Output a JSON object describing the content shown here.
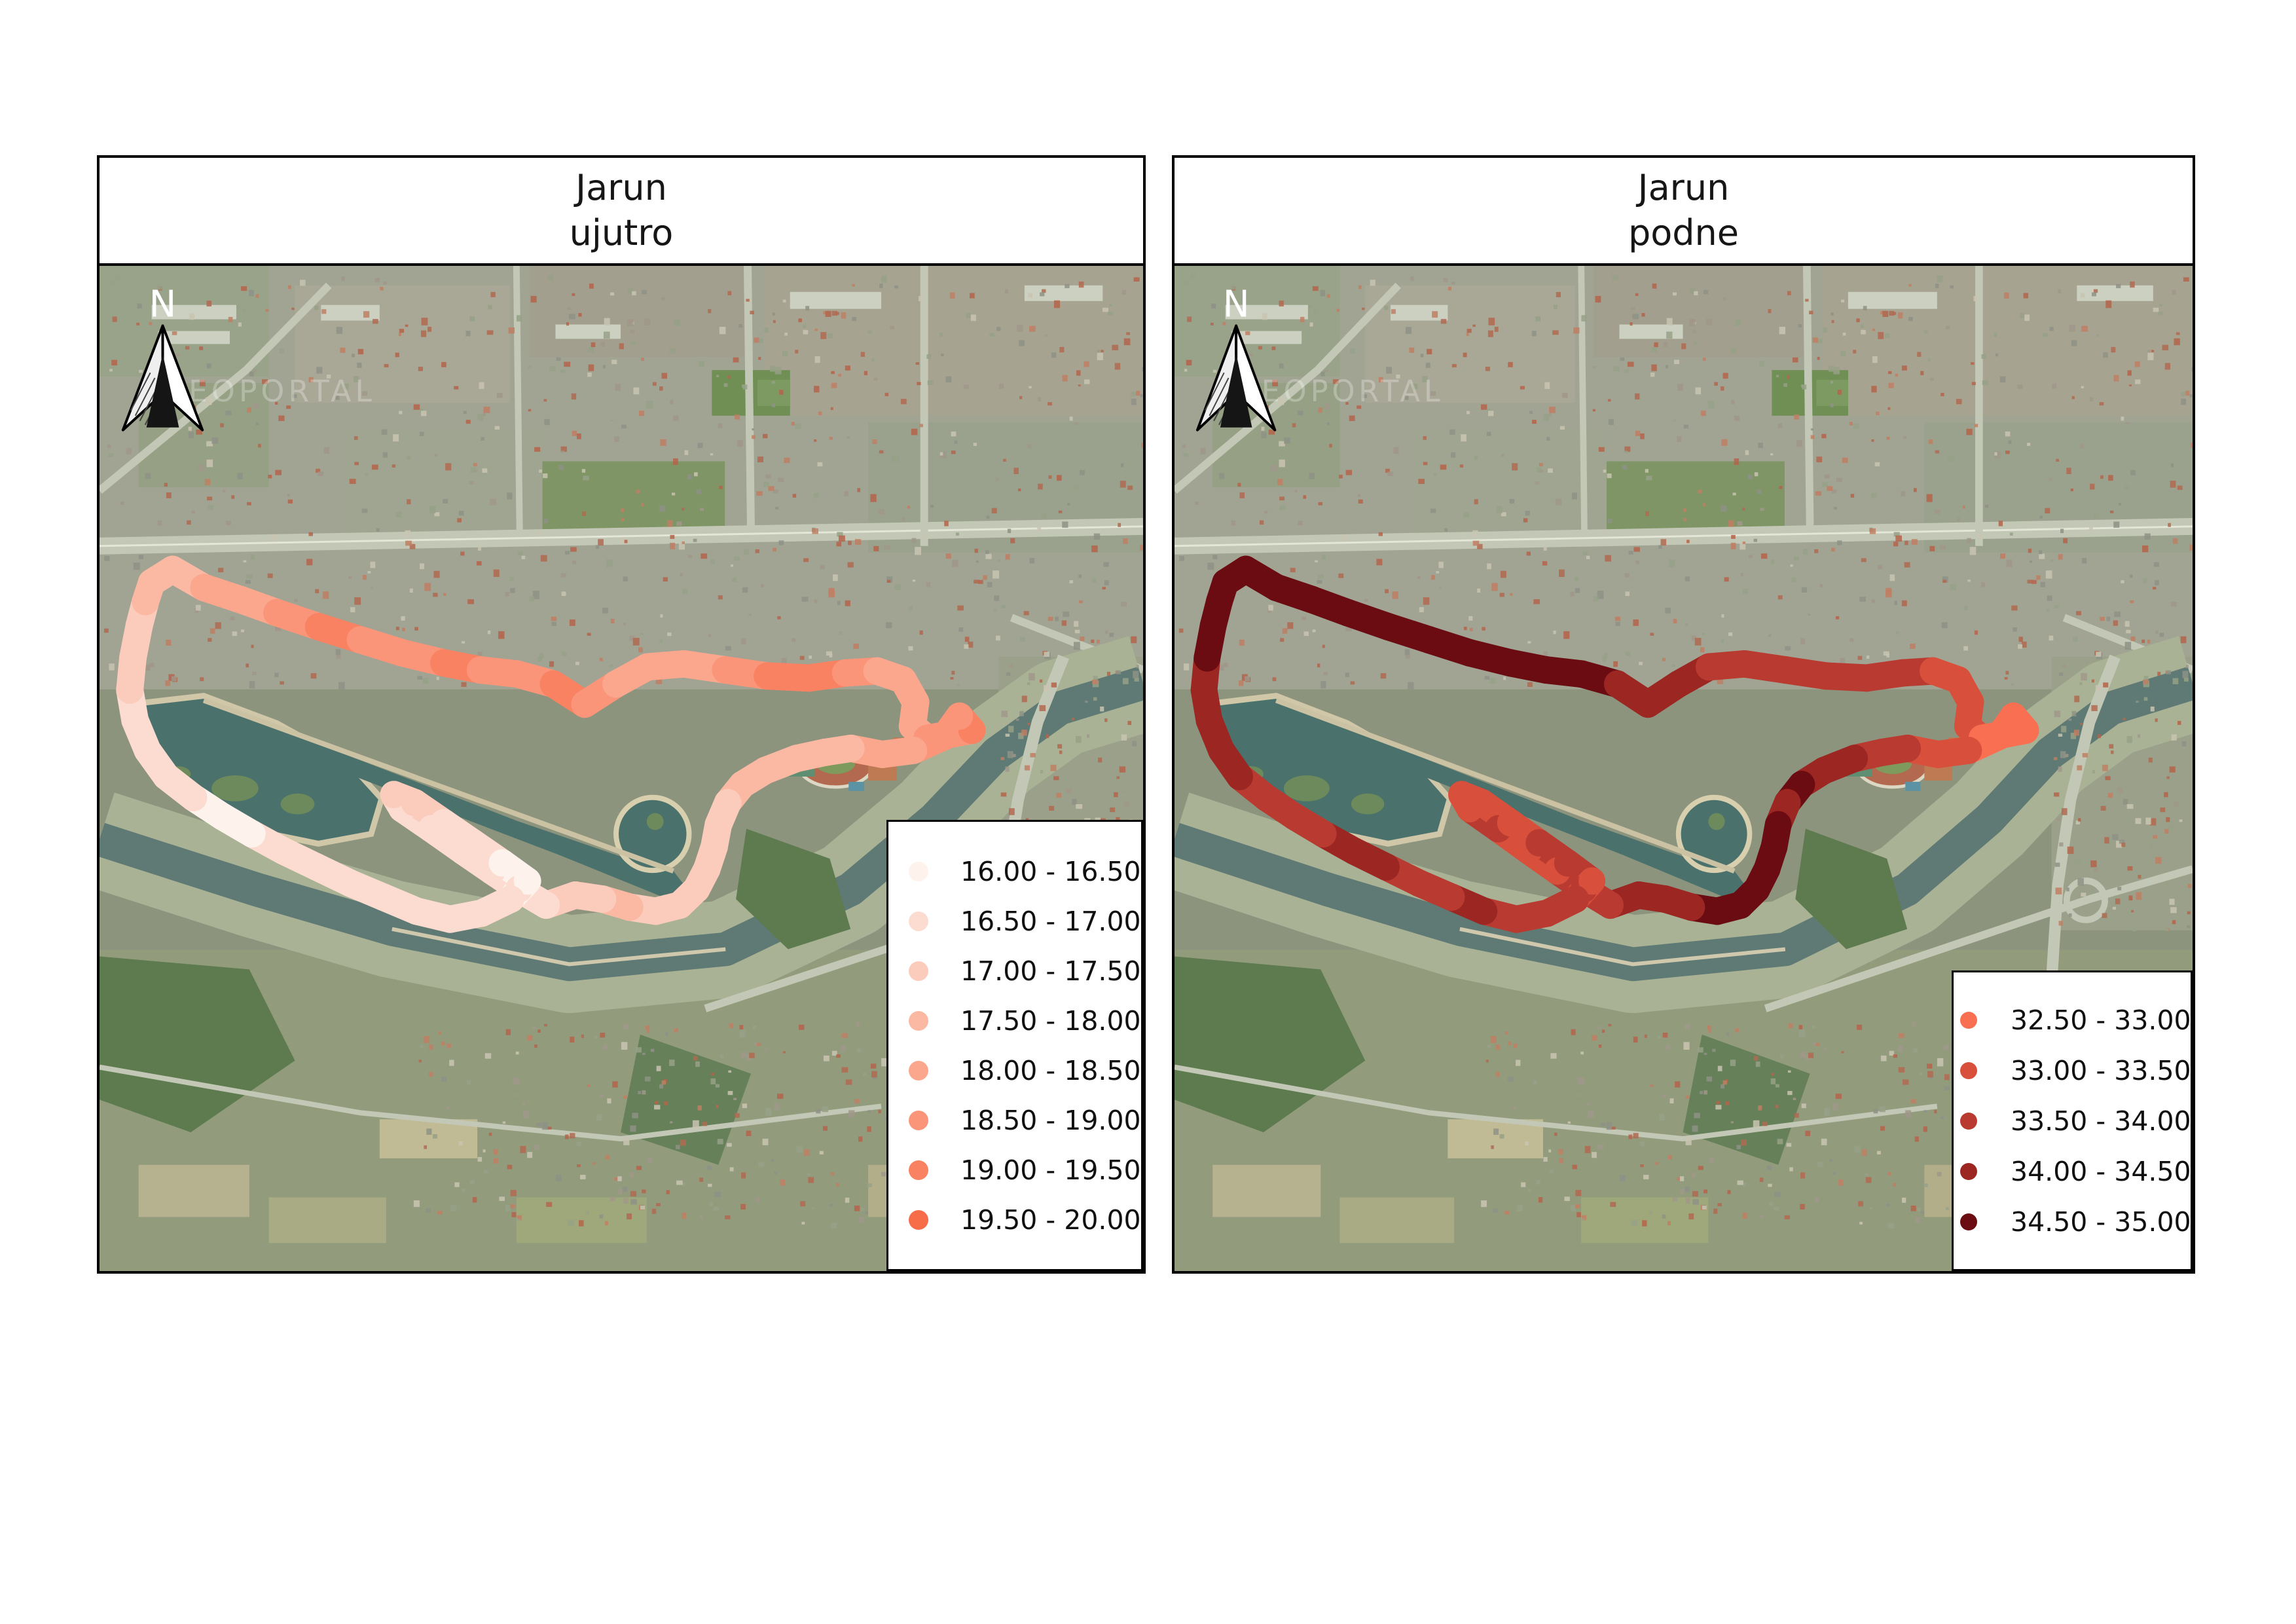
{
  "figure": {
    "background": "#ffffff"
  },
  "watermark": "GEOPORTAL",
  "north_arrow": {
    "label": "N"
  },
  "basemap_colors": {
    "terrain": "#8d947e",
    "urban": "#a1a492",
    "forest": "#5e7b50",
    "field": "#b6b28f",
    "lake_water": "#4a716b",
    "river_water": "#5f7a74",
    "river_bank": "#a9b295",
    "road": "#c3c8b6",
    "roof": "#b06a50",
    "sand": "#d8cfae"
  },
  "route": [
    [
      5.0,
      31.5
    ],
    [
      7.0,
      30.2
    ],
    [
      10.0,
      32.0
    ],
    [
      13.5,
      33.2
    ],
    [
      17.0,
      34.5
    ],
    [
      21.0,
      35.9
    ],
    [
      25.0,
      37.2
    ],
    [
      29.0,
      38.5
    ],
    [
      33.0,
      39.5
    ],
    [
      36.5,
      40.2
    ],
    [
      40.0,
      40.6
    ],
    [
      43.5,
      41.6
    ],
    [
      46.5,
      43.6
    ],
    [
      49.5,
      41.6
    ],
    [
      52.5,
      39.9
    ],
    [
      56.0,
      39.6
    ],
    [
      60.0,
      40.2
    ],
    [
      64.0,
      40.8
    ],
    [
      68.0,
      41.0
    ],
    [
      71.5,
      40.5
    ],
    [
      74.5,
      40.3
    ],
    [
      77.0,
      41.2
    ],
    [
      78.2,
      43.4
    ],
    [
      77.9,
      45.8
    ],
    [
      79.3,
      47.0
    ],
    [
      81.5,
      46.6
    ],
    [
      83.6,
      46.2
    ],
    [
      82.4,
      44.8
    ],
    [
      81.0,
      46.8
    ],
    [
      78.0,
      48.2
    ],
    [
      75.0,
      48.6
    ],
    [
      72.0,
      48.0
    ],
    [
      69.5,
      48.4
    ],
    [
      66.8,
      49.0
    ],
    [
      63.8,
      50.2
    ],
    [
      61.6,
      51.6
    ],
    [
      60.2,
      53.4
    ],
    [
      59.3,
      55.6
    ],
    [
      58.9,
      57.8
    ],
    [
      58.2,
      60.0
    ],
    [
      57.2,
      62.0
    ],
    [
      55.6,
      63.6
    ],
    [
      53.3,
      64.2
    ],
    [
      50.8,
      63.8
    ],
    [
      48.2,
      63.0
    ],
    [
      45.6,
      62.6
    ],
    [
      42.8,
      63.6
    ],
    [
      40.2,
      62.0
    ],
    [
      37.6,
      60.2
    ],
    [
      34.8,
      58.2
    ],
    [
      31.8,
      56.0
    ],
    [
      29.0,
      54.0
    ],
    [
      28.2,
      52.6
    ],
    [
      30.2,
      53.4
    ],
    [
      33.0,
      55.4
    ],
    [
      35.8,
      57.4
    ],
    [
      38.6,
      59.4
    ],
    [
      41.0,
      61.2
    ],
    [
      39.4,
      63.0
    ],
    [
      36.6,
      64.4
    ],
    [
      33.6,
      65.0
    ],
    [
      30.4,
      64.2
    ],
    [
      27.2,
      62.8
    ],
    [
      24.0,
      61.4
    ],
    [
      20.8,
      59.8
    ],
    [
      17.6,
      58.2
    ],
    [
      14.6,
      56.5
    ],
    [
      11.8,
      54.8
    ],
    [
      9.0,
      52.9
    ],
    [
      6.4,
      50.8
    ],
    [
      4.6,
      48.2
    ],
    [
      3.4,
      45.2
    ],
    [
      2.9,
      42.2
    ],
    [
      3.2,
      39.0
    ],
    [
      3.8,
      35.8
    ],
    [
      4.4,
      33.4
    ]
  ],
  "panels": [
    {
      "title_line1": "Jarun",
      "title_line2": "ujutro",
      "legend": {
        "entries": [
          {
            "label": "16.00 - 16.50",
            "color": "#fdf2ec",
            "textured": true
          },
          {
            "label": "16.50 - 17.00",
            "color": "#fcdcd1"
          },
          {
            "label": "17.00 - 17.50",
            "color": "#fbccbc"
          },
          {
            "label": "17.50 - 18.00",
            "color": "#fbb9a3"
          },
          {
            "label": "18.00 - 18.50",
            "color": "#fba78e"
          },
          {
            "label": "18.50 - 19.00",
            "color": "#fa957a"
          },
          {
            "label": "19.00 - 19.50",
            "color": "#f98263"
          },
          {
            "label": "19.50 - 20.00",
            "color": "#f76d4a"
          }
        ]
      },
      "track": {
        "classes": [
          3,
          3,
          4,
          4,
          5,
          6,
          5,
          5,
          6,
          5,
          5,
          6,
          5,
          4,
          4,
          4,
          5,
          6,
          6,
          5,
          4,
          4,
          4,
          4,
          5,
          5,
          6,
          5,
          5,
          4,
          4,
          3,
          3,
          3,
          3,
          3,
          2,
          2,
          2,
          2,
          2,
          2,
          2,
          3,
          2,
          2,
          1,
          1,
          1,
          1,
          1,
          1,
          2,
          2,
          1,
          1,
          0,
          0,
          1,
          1,
          1,
          1,
          1,
          1,
          1,
          1,
          0,
          0,
          1,
          1,
          1,
          1,
          2,
          2,
          2,
          3
        ]
      }
    },
    {
      "title_line1": "Jarun",
      "title_line2": "podne",
      "legend": {
        "entries": [
          {
            "label": "32.50 - 33.00",
            "color": "#f87051"
          },
          {
            "label": "33.00 - 33.50",
            "color": "#d8503b"
          },
          {
            "label": "33.50 - 34.00",
            "color": "#b93a30"
          },
          {
            "label": "34.00 - 34.50",
            "color": "#9b2622"
          },
          {
            "label": "34.50 - 35.00",
            "color": "#6a0c12"
          }
        ]
      },
      "track": {
        "classes": [
          4,
          4,
          4,
          4,
          4,
          4,
          4,
          4,
          4,
          4,
          4,
          3,
          3,
          3,
          2,
          2,
          2,
          2,
          2,
          2,
          1,
          1,
          1,
          1,
          0,
          0,
          0,
          0,
          0,
          1,
          1,
          2,
          2,
          3,
          3,
          4,
          3,
          4,
          4,
          4,
          4,
          4,
          4,
          3,
          3,
          3,
          2,
          2,
          1,
          1,
          2,
          1,
          1,
          1,
          1,
          2,
          2,
          1,
          2,
          2,
          2,
          3,
          2,
          2,
          3,
          3,
          2,
          2,
          2,
          3,
          3,
          3,
          3,
          4,
          4,
          4
        ]
      }
    }
  ]
}
